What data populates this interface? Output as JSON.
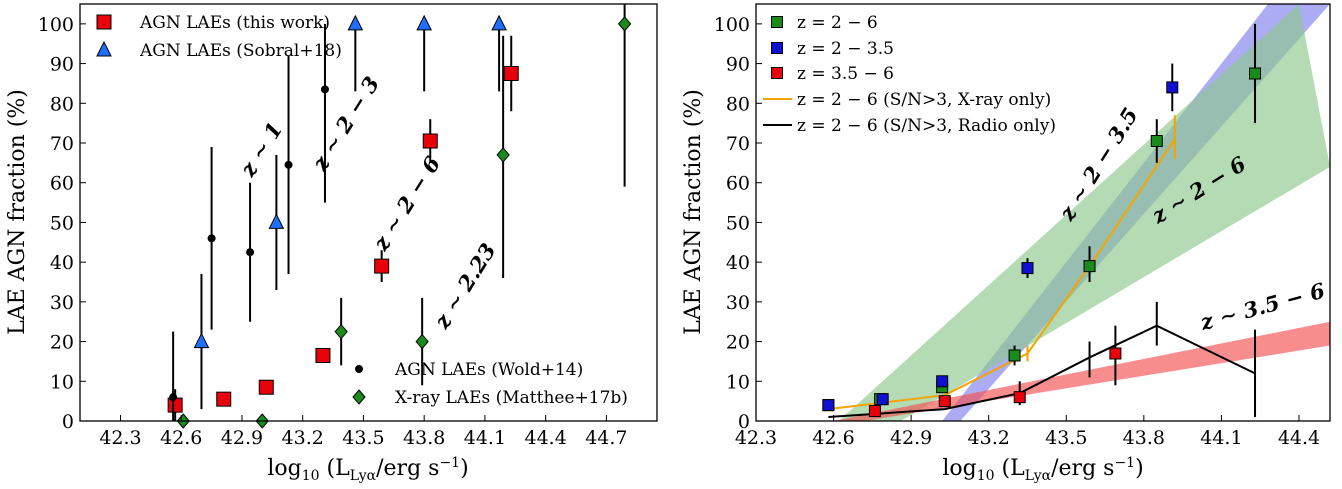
{
  "chart_data": [
    {
      "type": "scatter",
      "xlabel": "log₁₀ (L_Lyα/erg s⁻¹)",
      "ylabel": "LAE AGN fraction (%)",
      "xlim": [
        42.1,
        44.95
      ],
      "ylim": [
        0,
        105
      ],
      "xticks": [
        42.3,
        42.6,
        42.9,
        43.2,
        43.5,
        43.8,
        44.1,
        44.4,
        44.7
      ],
      "yticks": [
        0,
        10,
        20,
        30,
        40,
        50,
        60,
        70,
        80,
        90,
        100
      ],
      "legends": [
        {
          "position": "top-left",
          "entries": [
            "AGN LAEs (this work)",
            "AGN LAEs (Sobral+18)"
          ]
        },
        {
          "position": "bottom-right",
          "entries": [
            "AGN LAEs (Wold+14)",
            "X-ray LAEs (Matthee+17b)"
          ]
        }
      ],
      "annotations": [
        {
          "text": "z ∼ 1",
          "color": "#000000"
        },
        {
          "text": "z ∼ 2 − 3",
          "color": "#1f78e0"
        },
        {
          "text": "z ∼ 2 − 6",
          "color": "#e8000b"
        },
        {
          "text": "z ∼ 2.23",
          "color": "#1a8a1a"
        }
      ],
      "series": [
        {
          "name": "AGN LAEs (this work)",
          "marker": "square",
          "color": "#e8000b",
          "points": [
            {
              "x": 42.57,
              "y": 4,
              "lo": 0,
              "hi": 8
            },
            {
              "x": 42.81,
              "y": 5.5,
              "lo": 5.5,
              "hi": 5.5
            },
            {
              "x": 43.02,
              "y": 8.5,
              "lo": 8.5,
              "hi": 8.5
            },
            {
              "x": 43.3,
              "y": 16.5,
              "lo": 16.5,
              "hi": 16.5
            },
            {
              "x": 43.59,
              "y": 39,
              "lo": 35,
              "hi": 43
            },
            {
              "x": 43.83,
              "y": 70.5,
              "lo": 65,
              "hi": 76
            },
            {
              "x": 44.23,
              "y": 87.5,
              "lo": 78,
              "hi": 97
            }
          ]
        },
        {
          "name": "AGN LAEs (Sobral+18)",
          "marker": "triangle",
          "color": "#1f6fff",
          "points": [
            {
              "x": 42.7,
              "y": 20,
              "lo": 3,
              "hi": 37
            },
            {
              "x": 43.07,
              "y": 50,
              "lo": 33,
              "hi": 67
            },
            {
              "x": 43.46,
              "y": 100,
              "lo": 83,
              "hi": 100
            },
            {
              "x": 43.8,
              "y": 100,
              "lo": 83,
              "hi": 100
            },
            {
              "x": 44.17,
              "y": 100,
              "lo": 83,
              "hi": 100
            }
          ]
        },
        {
          "name": "AGN LAEs (Wold+14)",
          "marker": "circle",
          "color": "#000000",
          "points": [
            {
              "x": 42.56,
              "y": 6,
              "lo": 0,
              "hi": 22.5
            },
            {
              "x": 42.75,
              "y": 46,
              "lo": 23,
              "hi": 69
            },
            {
              "x": 42.94,
              "y": 42.5,
              "lo": 25,
              "hi": 60
            },
            {
              "x": 43.13,
              "y": 64.5,
              "lo": 37,
              "hi": 92
            },
            {
              "x": 43.31,
              "y": 83.5,
              "lo": 55,
              "hi": 100
            }
          ]
        },
        {
          "name": "X-ray LAEs (Matthee+17b)",
          "marker": "diamond",
          "color": "#1a8a1a",
          "points": [
            {
              "x": 42.61,
              "y": 0,
              "lo": 0,
              "hi": 0
            },
            {
              "x": 43.0,
              "y": 0,
              "lo": 0,
              "hi": 0
            },
            {
              "x": 43.39,
              "y": 22.5,
              "lo": 14,
              "hi": 31
            },
            {
              "x": 43.79,
              "y": 20,
              "lo": 9,
              "hi": 31
            },
            {
              "x": 44.19,
              "y": 67,
              "lo": 36,
              "hi": 97
            },
            {
              "x": 44.79,
              "y": 100,
              "lo": 59,
              "hi": 105
            }
          ]
        }
      ]
    },
    {
      "type": "scatter",
      "xlabel": "log₁₀ (L_Lyα/erg s⁻¹)",
      "ylabel": "LAE AGN fraction (%)",
      "xlim": [
        42.3,
        44.52
      ],
      "ylim": [
        0,
        105
      ],
      "xticks": [
        42.3,
        42.6,
        42.9,
        43.2,
        43.5,
        43.8,
        44.1,
        44.4
      ],
      "yticks": [
        0,
        10,
        20,
        30,
        40,
        50,
        60,
        70,
        80,
        90,
        100
      ],
      "legend": {
        "position": "top-left"
      },
      "annotations": [
        {
          "text": "z ∼ 2 − 3.5",
          "color": "#2222ee"
        },
        {
          "text": "z ∼ 2 − 6",
          "color": "#1a8a1a"
        },
        {
          "text": "z ∼ 3.5 − 6",
          "color": "#e8000b"
        }
      ],
      "bands": [
        {
          "name": "z ∼ 2 − 3.5",
          "color": "#8080f0",
          "upper": [
            [
              43.02,
              0
            ],
            [
              44.28,
              105
            ]
          ],
          "lower": [
            [
              43.09,
              0
            ],
            [
              44.52,
              105
            ]
          ]
        },
        {
          "name": "z ∼ 2 − 6",
          "color": "#8cc88c",
          "upper": [
            [
              42.62,
              0
            ],
            [
              44.4,
              105
            ]
          ],
          "lower": [
            [
              42.86,
              0
            ],
            [
              44.52,
              64
            ]
          ]
        },
        {
          "name": "z ∼ 3.5 − 6",
          "color": "#f25050",
          "upper": [
            [
              42.6,
              0
            ],
            [
              44.52,
              25
            ]
          ],
          "lower": [
            [
              42.72,
              0
            ],
            [
              44.52,
              19
            ]
          ]
        }
      ],
      "series": [
        {
          "name": "z = 2 − 6",
          "marker": "square",
          "color": "#1a8a1a",
          "points": [
            {
              "x": 42.58,
              "y": 4,
              "lo": 4,
              "hi": 4
            },
            {
              "x": 42.78,
              "y": 5.5,
              "lo": 5.5,
              "hi": 5.5
            },
            {
              "x": 43.02,
              "y": 8.5,
              "lo": 8.5,
              "hi": 8.5
            },
            {
              "x": 43.3,
              "y": 16.5,
              "lo": 14,
              "hi": 19
            },
            {
              "x": 43.59,
              "y": 39,
              "lo": 35,
              "hi": 44
            },
            {
              "x": 43.85,
              "y": 70.5,
              "lo": 65,
              "hi": 76
            },
            {
              "x": 44.23,
              "y": 87.5,
              "lo": 75,
              "hi": 100
            }
          ]
        },
        {
          "name": "z = 2 − 3.5",
          "marker": "square",
          "color": "#1010d0",
          "points": [
            {
              "x": 42.58,
              "y": 4,
              "lo": 4,
              "hi": 4
            },
            {
              "x": 42.79,
              "y": 5.5,
              "lo": 5.5,
              "hi": 5.5
            },
            {
              "x": 43.02,
              "y": 10,
              "lo": 10,
              "hi": 10
            },
            {
              "x": 43.35,
              "y": 38.5,
              "lo": 36,
              "hi": 41
            },
            {
              "x": 43.91,
              "y": 84,
              "lo": 78,
              "hi": 90
            }
          ]
        },
        {
          "name": "z = 3.5 − 6",
          "marker": "square",
          "color": "#e8000b",
          "points": [
            {
              "x": 42.76,
              "y": 2.5,
              "lo": 2.5,
              "hi": 2.5
            },
            {
              "x": 43.03,
              "y": 5,
              "lo": 5,
              "hi": 5
            },
            {
              "x": 43.32,
              "y": 6,
              "lo": 6,
              "hi": 6
            },
            {
              "x": 43.69,
              "y": 17,
              "lo": 9,
              "hi": 24
            }
          ]
        },
        {
          "name": "z = 2 − 6 (S/N>3, X-ray only)",
          "type": "line",
          "color": "#f5a300",
          "points": [
            {
              "x": 42.58,
              "y": 3,
              "lo": 3,
              "hi": 3
            },
            {
              "x": 43.03,
              "y": 6.5,
              "lo": 6.5,
              "hi": 6.5
            },
            {
              "x": 43.35,
              "y": 17,
              "lo": 15,
              "hi": 19
            },
            {
              "x": 43.59,
              "y": 39,
              "lo": 39,
              "hi": 39
            },
            {
              "x": 43.92,
              "y": 71,
              "lo": 66,
              "hi": 77
            }
          ]
        },
        {
          "name": "z = 2 − 6 (S/N>3, Radio only)",
          "type": "line",
          "color": "#000000",
          "points": [
            {
              "x": 42.58,
              "y": 1,
              "lo": 1,
              "hi": 1
            },
            {
              "x": 43.03,
              "y": 3,
              "lo": 3,
              "hi": 3
            },
            {
              "x": 43.32,
              "y": 7,
              "lo": 4,
              "hi": 10
            },
            {
              "x": 43.59,
              "y": 16,
              "lo": 11,
              "hi": 20
            },
            {
              "x": 43.85,
              "y": 24,
              "lo": 19,
              "hi": 30
            },
            {
              "x": 44.23,
              "y": 12,
              "lo": 1,
              "hi": 23
            }
          ]
        }
      ]
    }
  ]
}
